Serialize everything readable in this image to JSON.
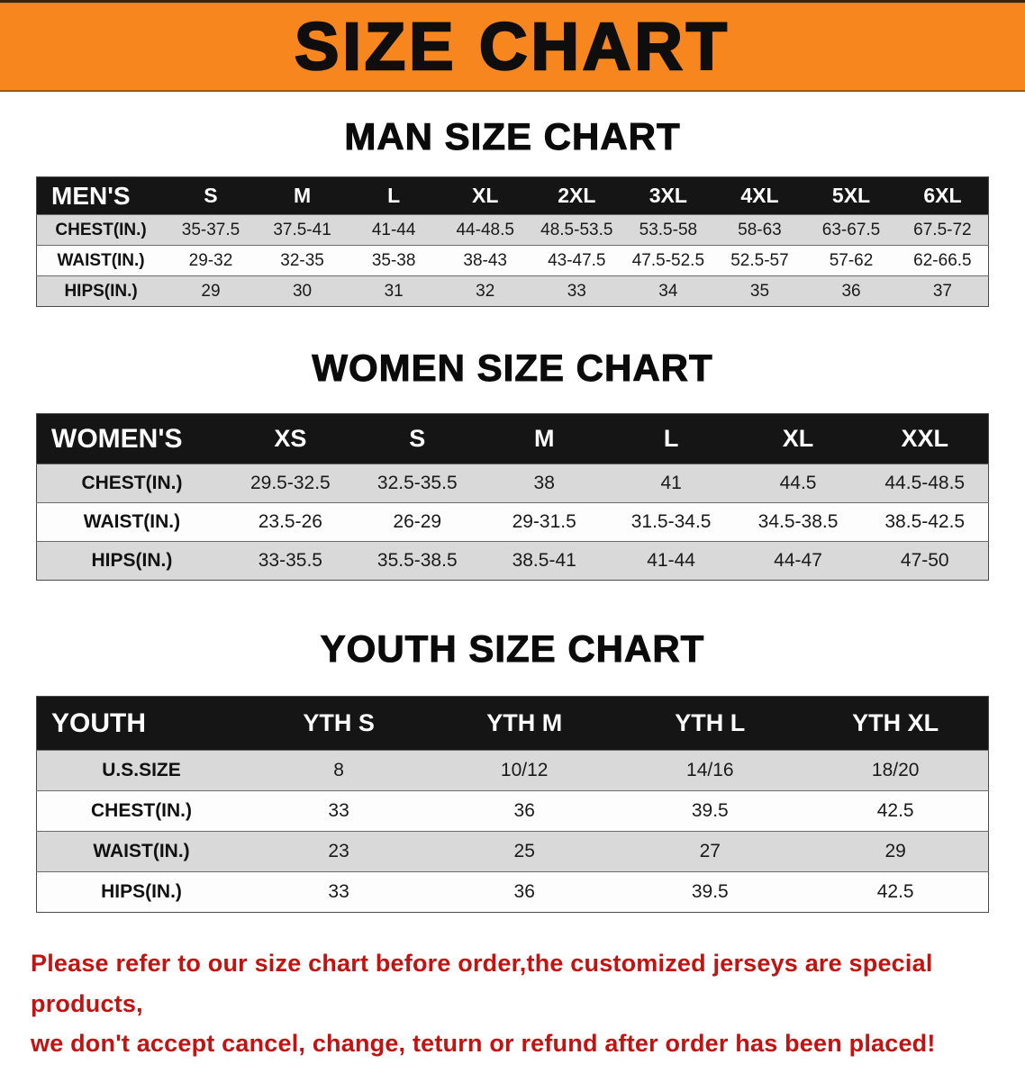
{
  "banner": {
    "title": "SIZE CHART"
  },
  "colors": {
    "banner_bg": "#f6861d",
    "table_header_bg": "#151515",
    "row_alt_bg": "#d9d9d9",
    "disclaimer_red": "#c41212"
  },
  "sections": [
    {
      "heading": "MAN SIZE CHART",
      "table": {
        "header": [
          "MEN'S",
          "S",
          "M",
          "L",
          "XL",
          "2XL",
          "3XL",
          "4XL",
          "5XL",
          "6XL"
        ],
        "rows": [
          [
            "CHEST(IN.)",
            "35-37.5",
            "37.5-41",
            "41-44",
            "44-48.5",
            "48.5-53.5",
            "53.5-58",
            "58-63",
            "63-67.5",
            "67.5-72"
          ],
          [
            "WAIST(IN.)",
            "29-32",
            "32-35",
            "35-38",
            "38-43",
            "43-47.5",
            "47.5-52.5",
            "52.5-57",
            "57-62",
            "62-66.5"
          ],
          [
            "HIPS(IN.)",
            "29",
            "30",
            "31",
            "32",
            "33",
            "34",
            "35",
            "36",
            "37"
          ]
        ]
      }
    },
    {
      "heading": "WOMEN SIZE CHART",
      "table": {
        "header": [
          "WOMEN'S",
          "XS",
          "S",
          "M",
          "L",
          "XL",
          "XXL"
        ],
        "rows": [
          [
            "CHEST(IN.)",
            "29.5-32.5",
            "32.5-35.5",
            "38",
            "41",
            "44.5",
            "44.5-48.5"
          ],
          [
            "WAIST(IN.)",
            "23.5-26",
            "26-29",
            "29-31.5",
            "31.5-34.5",
            "34.5-38.5",
            "38.5-42.5"
          ],
          [
            "HIPS(IN.)",
            "33-35.5",
            "35.5-38.5",
            "38.5-41",
            "41-44",
            "44-47",
            "47-50"
          ]
        ]
      }
    },
    {
      "heading": "YOUTH SIZE CHART",
      "table": {
        "header": [
          "YOUTH",
          "YTH S",
          "YTH M",
          "YTH L",
          "YTH XL"
        ],
        "rows": [
          [
            "U.S.SIZE",
            "8",
            "10/12",
            "14/16",
            "18/20"
          ],
          [
            "CHEST(IN.)",
            "33",
            "36",
            "39.5",
            "42.5"
          ],
          [
            "WAIST(IN.)",
            "23",
            "25",
            "27",
            "29"
          ],
          [
            "HIPS(IN.)",
            "33",
            "36",
            "39.5",
            "42.5"
          ]
        ]
      }
    }
  ],
  "disclaimer": {
    "line1": "Please refer to our size chart before order,the customized jerseys are special products,",
    "line2": "we don't accept cancel, change, teturn or refund after order has been placed!"
  }
}
